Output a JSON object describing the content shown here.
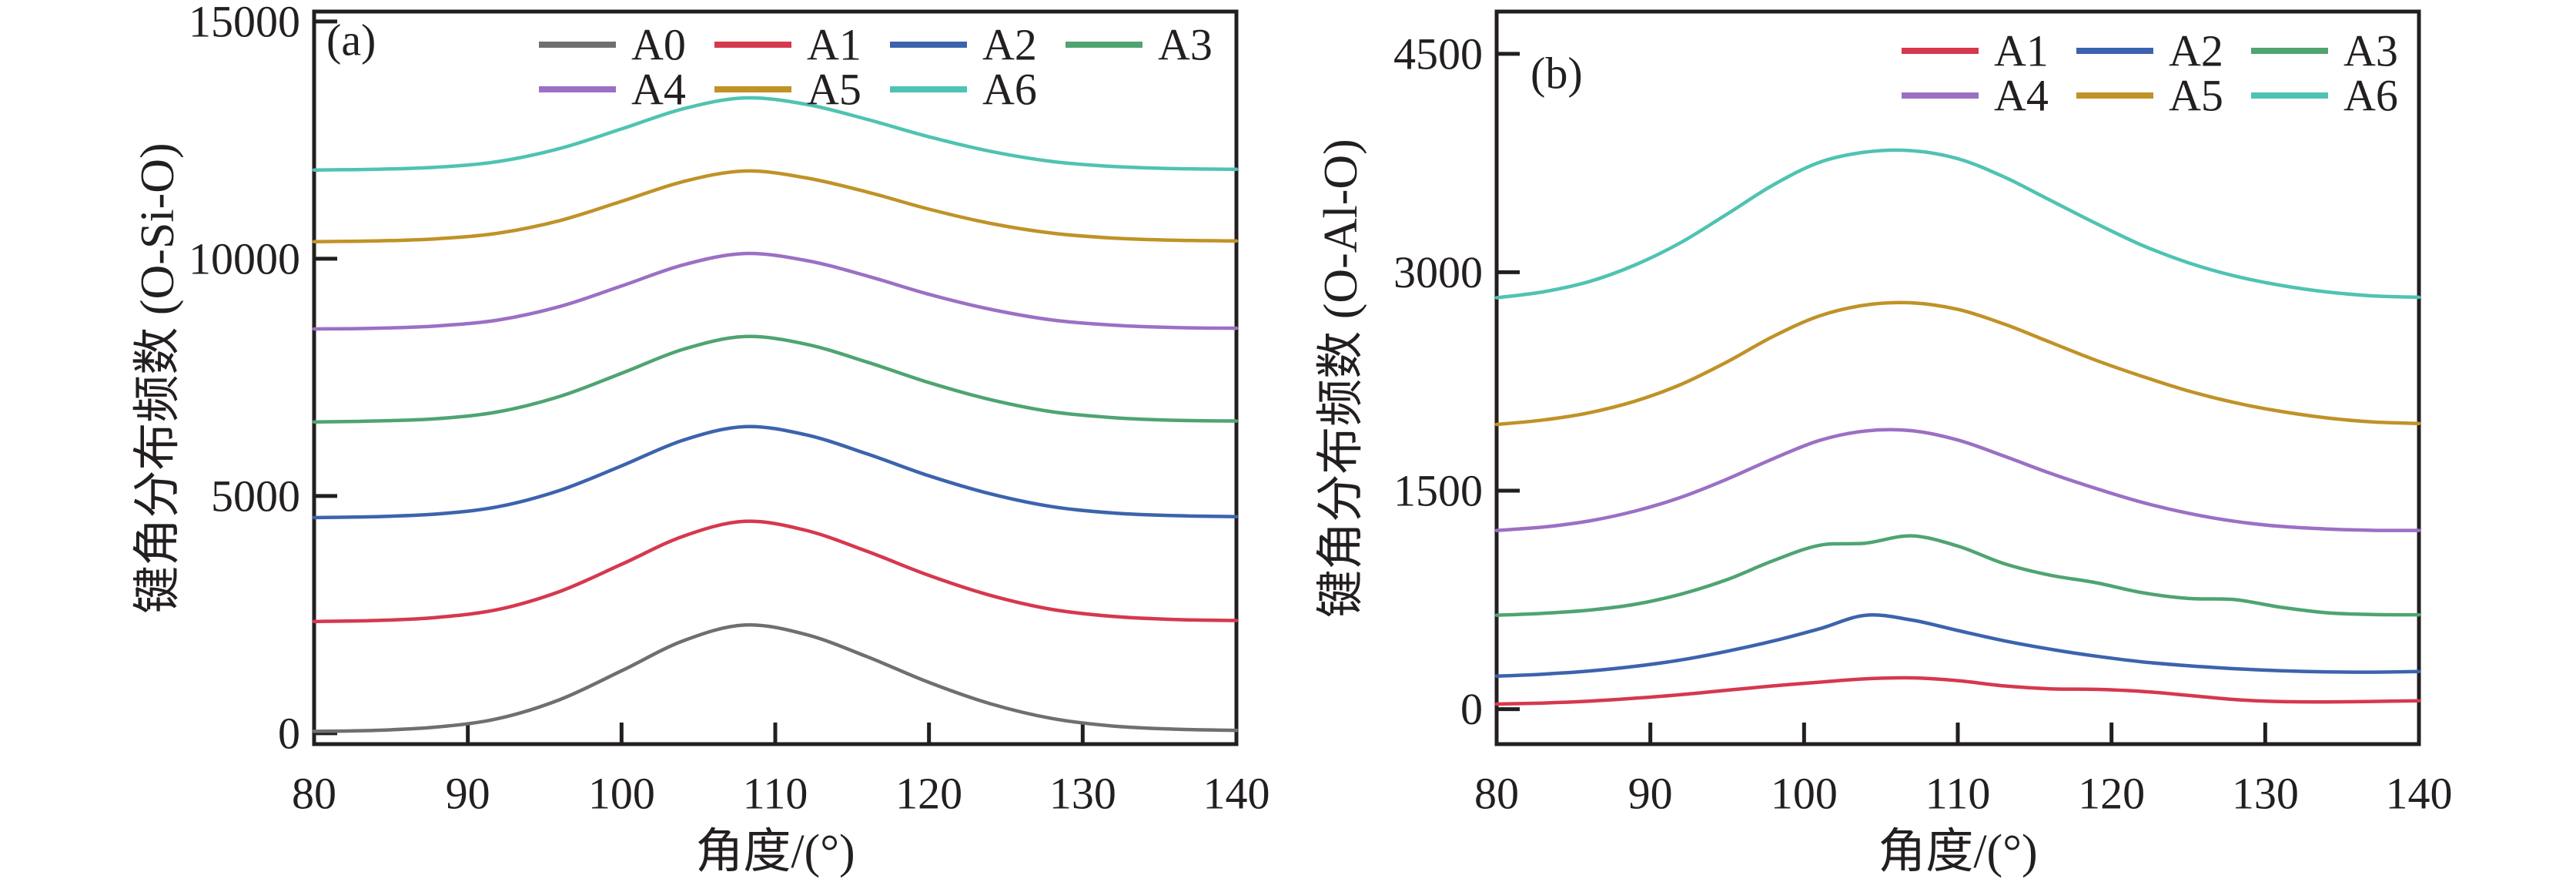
{
  "figure": {
    "background": "#ffffff",
    "frame_color": "#231f20",
    "text_color": "#231f20"
  },
  "chart_data": [
    {
      "type": "line",
      "panel_label": "(a)",
      "xlabel": "角度/(°)",
      "ylabel": "键角分布频数 (O-Si-O)",
      "xlim": [
        80,
        140
      ],
      "ylim": [
        -230,
        15210
      ],
      "xticks": [
        80,
        90,
        100,
        110,
        120,
        130,
        140
      ],
      "yticks": [
        0,
        5000,
        10000,
        15000
      ],
      "grid": false,
      "legend_position": "top-center",
      "legend_columns": 4,
      "x": [
        80,
        84,
        88,
        92,
        96,
        100,
        104,
        108,
        112,
        116,
        120,
        124,
        128,
        132,
        136,
        140
      ],
      "series": [
        {
          "name": "A0",
          "color": "#6f6f6f",
          "values": [
            40,
            60,
            130,
            310,
            710,
            1315,
            1945,
            2280,
            2080,
            1610,
            1070,
            620,
            310,
            150,
            85,
            60
          ]
        },
        {
          "name": "A1",
          "color": "#d6384e",
          "values": [
            2355,
            2375,
            2440,
            2610,
            2990,
            3560,
            4150,
            4465,
            4275,
            3830,
            3325,
            2905,
            2610,
            2460,
            2395,
            2375
          ]
        },
        {
          "name": "A2",
          "color": "#3c63ad",
          "values": [
            4545,
            4565,
            4620,
            4775,
            5120,
            5635,
            6175,
            6460,
            6290,
            5885,
            5425,
            5045,
            4775,
            4640,
            4585,
            4565
          ]
        },
        {
          "name": "A3",
          "color": "#4fa471",
          "values": [
            6560,
            6580,
            6630,
            6775,
            7100,
            7585,
            8090,
            8360,
            8200,
            7820,
            7390,
            7030,
            6775,
            6650,
            6595,
            6580
          ]
        },
        {
          "name": "A4",
          "color": "#9b70c4",
          "values": [
            8520,
            8535,
            8585,
            8710,
            8995,
            9425,
            9870,
            10110,
            9965,
            9635,
            9250,
            8935,
            8710,
            8600,
            8550,
            8535
          ]
        },
        {
          "name": "A5",
          "color": "#c09227",
          "values": [
            10360,
            10375,
            10420,
            10540,
            10805,
            11210,
            11625,
            11850,
            11705,
            11405,
            11045,
            10745,
            10540,
            10435,
            10390,
            10375
          ]
        },
        {
          "name": "A6",
          "color": "#4fc3b3",
          "values": [
            11870,
            11885,
            11930,
            12050,
            12325,
            12735,
            13160,
            13390,
            13255,
            12935,
            12570,
            12265,
            12050,
            11945,
            11900,
            11885
          ]
        }
      ]
    },
    {
      "type": "line",
      "panel_label": "(b)",
      "xlabel": "角度/(°)",
      "ylabel": "键角分布频数 (O-Al-O)",
      "xlim": [
        80,
        140
      ],
      "ylim": [
        -240,
        4790
      ],
      "xticks": [
        80,
        90,
        100,
        110,
        120,
        130,
        140
      ],
      "yticks": [
        0,
        1500,
        3000,
        4500
      ],
      "grid": false,
      "legend_position": "top-right",
      "legend_columns": 3,
      "x": [
        80,
        83,
        86,
        89,
        92,
        95,
        98,
        101,
        104,
        107,
        110,
        113,
        116,
        119,
        122,
        125,
        128,
        131,
        134,
        137,
        140
      ],
      "series": [
        {
          "name": "A1",
          "color": "#d6384e",
          "values": [
            35,
            42,
            55,
            75,
            100,
            130,
            160,
            185,
            208,
            215,
            196,
            160,
            140,
            136,
            122,
            95,
            66,
            52,
            50,
            53,
            58
          ]
        },
        {
          "name": "A2",
          "color": "#3c63ad",
          "values": [
            227,
            240,
            262,
            294,
            338,
            398,
            468,
            552,
            645,
            612,
            540,
            470,
            412,
            364,
            325,
            298,
            278,
            264,
            256,
            254,
            258
          ]
        },
        {
          "name": "A3",
          "color": "#4fa471",
          "values": [
            645,
            658,
            680,
            720,
            790,
            890,
            1020,
            1125,
            1140,
            1190,
            1120,
            1000,
            920,
            868,
            800,
            760,
            752,
            700,
            662,
            650,
            648
          ]
        },
        {
          "name": "A4",
          "color": "#9b70c4",
          "values": [
            1227,
            1250,
            1292,
            1360,
            1455,
            1580,
            1720,
            1845,
            1910,
            1912,
            1848,
            1738,
            1620,
            1515,
            1420,
            1345,
            1290,
            1255,
            1237,
            1228,
            1227
          ]
        },
        {
          "name": "A5",
          "color": "#c09227",
          "values": [
            1955,
            1985,
            2035,
            2115,
            2230,
            2385,
            2560,
            2700,
            2775,
            2790,
            2745,
            2645,
            2520,
            2395,
            2285,
            2185,
            2105,
            2045,
            2000,
            1972,
            1962
          ]
        },
        {
          "name": "A6",
          "color": "#4fc3b3",
          "values": [
            2825,
            2865,
            2935,
            3050,
            3205,
            3400,
            3600,
            3755,
            3825,
            3835,
            3780,
            3655,
            3495,
            3335,
            3185,
            3065,
            2975,
            2910,
            2865,
            2838,
            2828
          ]
        }
      ]
    }
  ]
}
